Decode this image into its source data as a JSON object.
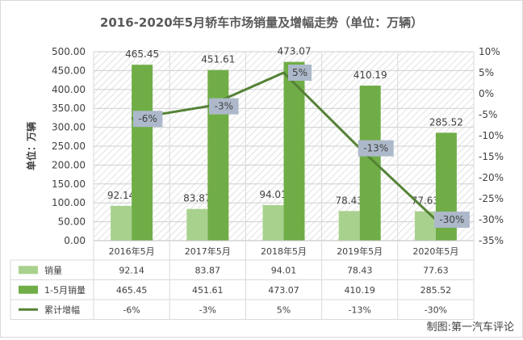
{
  "chart_data": {
    "type": "bar",
    "title": "2016-2020年5月轿车市场销量及增幅走势（单位：万辆）",
    "ylabel": "单位：万辆",
    "categories": [
      "2016年5月",
      "2017年5月",
      "2018年5月",
      "2019年5月",
      "2020年5月"
    ],
    "series": [
      {
        "name": "销量",
        "type": "bar",
        "color": "#a9d18e",
        "values": [
          92.14,
          83.87,
          94.01,
          78.43,
          77.63
        ],
        "labels": [
          "92.14",
          "83.87",
          "94.01",
          "78.43",
          "77.63"
        ]
      },
      {
        "name": "1-5月销量",
        "type": "bar",
        "color": "#70ad47",
        "values": [
          465.45,
          451.61,
          473.07,
          410.19,
          285.52
        ],
        "labels": [
          "465.45",
          "451.61",
          "473.07",
          "410.19",
          "285.52"
        ]
      },
      {
        "name": "累计增幅",
        "type": "line",
        "axis": "right",
        "color": "#548235",
        "values": [
          -6,
          -3,
          5,
          -13,
          -30
        ],
        "labels": [
          "-6%",
          "-3%",
          "5%",
          "-13%",
          "-30%"
        ]
      }
    ],
    "y_left": {
      "min": 0,
      "max": 500,
      "step": 50,
      "ticks": [
        "0.00",
        "50.00",
        "100.00",
        "150.00",
        "200.00",
        "250.00",
        "300.00",
        "350.00",
        "400.00",
        "450.00",
        "500.00"
      ]
    },
    "y_right": {
      "min": -35,
      "max": 10,
      "step": 5,
      "ticks": [
        "-35%",
        "-30%",
        "-25%",
        "-20%",
        "-15%",
        "-10%",
        "-5%",
        "0%",
        "5%",
        "10%"
      ]
    },
    "legend_placement": "data-table-left",
    "grid": true,
    "background_pattern": "diagonal-hatch",
    "label_box_color": "#adb9ca"
  },
  "credit": "制图:第一汽车评论"
}
